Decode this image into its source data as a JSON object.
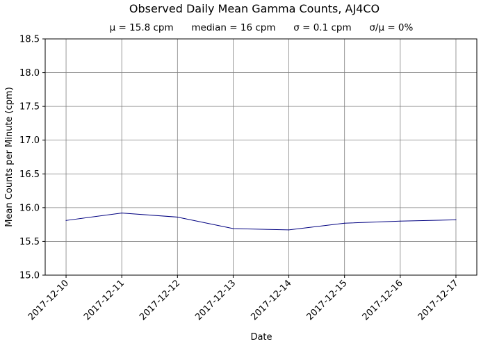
{
  "chart_data": {
    "type": "line",
    "title": "Observed Daily Mean Gamma Counts, AJ4CO",
    "subtitle": "μ = 15.8 cpm      median = 16 cpm      σ = 0.1 cpm      σ/μ = 0%",
    "xlabel": "Date",
    "ylabel": "Mean Counts per Minute (cpm)",
    "ylim": [
      15.0,
      18.5
    ],
    "yticks": [
      "15.0",
      "15.5",
      "16.0",
      "16.5",
      "17.0",
      "17.5",
      "18.0",
      "18.5"
    ],
    "xticks": [
      "2017-12-10",
      "2017-12-11",
      "2017-12-12",
      "2017-12-13",
      "2017-12-14",
      "2017-12-15",
      "2017-12-16",
      "2017-12-17"
    ],
    "xlim": [
      "2017-12-09T15:00",
      "2017-12-17T09:00"
    ],
    "grid": true,
    "line_color": "#000080",
    "grid_color": "#808080",
    "series": [
      {
        "x": [
          "2017-12-10",
          "2017-12-11",
          "2017-12-12",
          "2017-12-13",
          "2017-12-14",
          "2017-12-15",
          "2017-12-16",
          "2017-12-17"
        ],
        "y": [
          15.81,
          15.92,
          15.86,
          15.69,
          15.67,
          15.77,
          15.8,
          15.82
        ]
      }
    ]
  }
}
